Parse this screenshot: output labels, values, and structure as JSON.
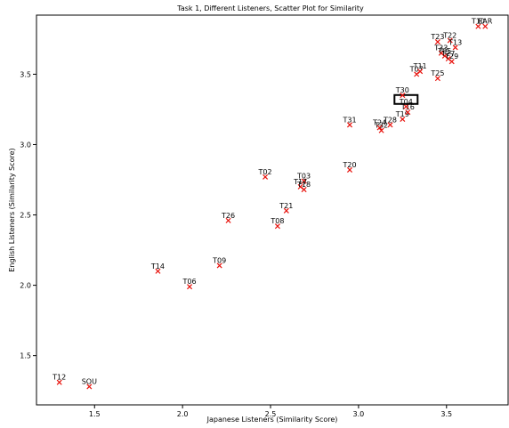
{
  "chart_data": {
    "type": "scatter",
    "title": "Task 1, Different Listeners, Scatter Plot for Similarity",
    "xlabel": "Japanese Listeners (Similarity Score)",
    "ylabel": "English Listeners (Similarity Score)",
    "xlim": [
      1.17,
      3.85
    ],
    "ylim": [
      1.15,
      3.92
    ],
    "xticks": [
      "1.5",
      "2.0",
      "2.5",
      "3.0",
      "3.5"
    ],
    "yticks": [
      "1.5",
      "2.0",
      "2.5",
      "3.0",
      "3.5"
    ],
    "grid": false,
    "marker_color": "#e8120c",
    "highlighted_label": "T04",
    "points": [
      {
        "label": "T12",
        "x": 1.3,
        "y": 1.31
      },
      {
        "label": "SOU",
        "x": 1.47,
        "y": 1.28
      },
      {
        "label": "T14",
        "x": 1.86,
        "y": 2.1
      },
      {
        "label": "T06",
        "x": 2.04,
        "y": 1.99
      },
      {
        "label": "T09",
        "x": 2.21,
        "y": 2.14
      },
      {
        "label": "T26",
        "x": 2.26,
        "y": 2.46
      },
      {
        "label": "T02",
        "x": 2.47,
        "y": 2.77
      },
      {
        "label": "T08",
        "x": 2.54,
        "y": 2.42
      },
      {
        "label": "T21",
        "x": 2.59,
        "y": 2.53
      },
      {
        "label": "T03",
        "x": 2.69,
        "y": 2.74
      },
      {
        "label": "T17",
        "x": 2.67,
        "y": 2.7
      },
      {
        "label": "T18",
        "x": 2.69,
        "y": 2.68
      },
      {
        "label": "T20",
        "x": 2.95,
        "y": 2.82
      },
      {
        "label": "T31",
        "x": 2.95,
        "y": 3.14
      },
      {
        "label": "T24",
        "x": 3.12,
        "y": 3.12
      },
      {
        "label": "T32",
        "x": 3.13,
        "y": 3.1
      },
      {
        "label": "T28",
        "x": 3.18,
        "y": 3.14
      },
      {
        "label": "T19",
        "x": 3.25,
        "y": 3.18
      },
      {
        "label": "T16",
        "x": 3.28,
        "y": 3.23
      },
      {
        "label": "T04",
        "x": 3.27,
        "y": 3.27
      },
      {
        "label": "T30",
        "x": 3.25,
        "y": 3.35
      },
      {
        "label": "T07",
        "x": 3.33,
        "y": 3.5
      },
      {
        "label": "T11",
        "x": 3.35,
        "y": 3.52
      },
      {
        "label": "T25",
        "x": 3.45,
        "y": 3.47
      },
      {
        "label": "T33",
        "x": 3.47,
        "y": 3.65
      },
      {
        "label": "T05",
        "x": 3.49,
        "y": 3.63
      },
      {
        "label": "T27",
        "x": 3.51,
        "y": 3.61
      },
      {
        "label": "T29",
        "x": 3.53,
        "y": 3.59
      },
      {
        "label": "T23",
        "x": 3.45,
        "y": 3.73
      },
      {
        "label": "T22",
        "x": 3.52,
        "y": 3.74
      },
      {
        "label": "T13",
        "x": 3.55,
        "y": 3.69
      },
      {
        "label": "T10",
        "x": 3.68,
        "y": 3.84
      },
      {
        "label": "EAR",
        "x": 3.72,
        "y": 3.84
      }
    ]
  }
}
